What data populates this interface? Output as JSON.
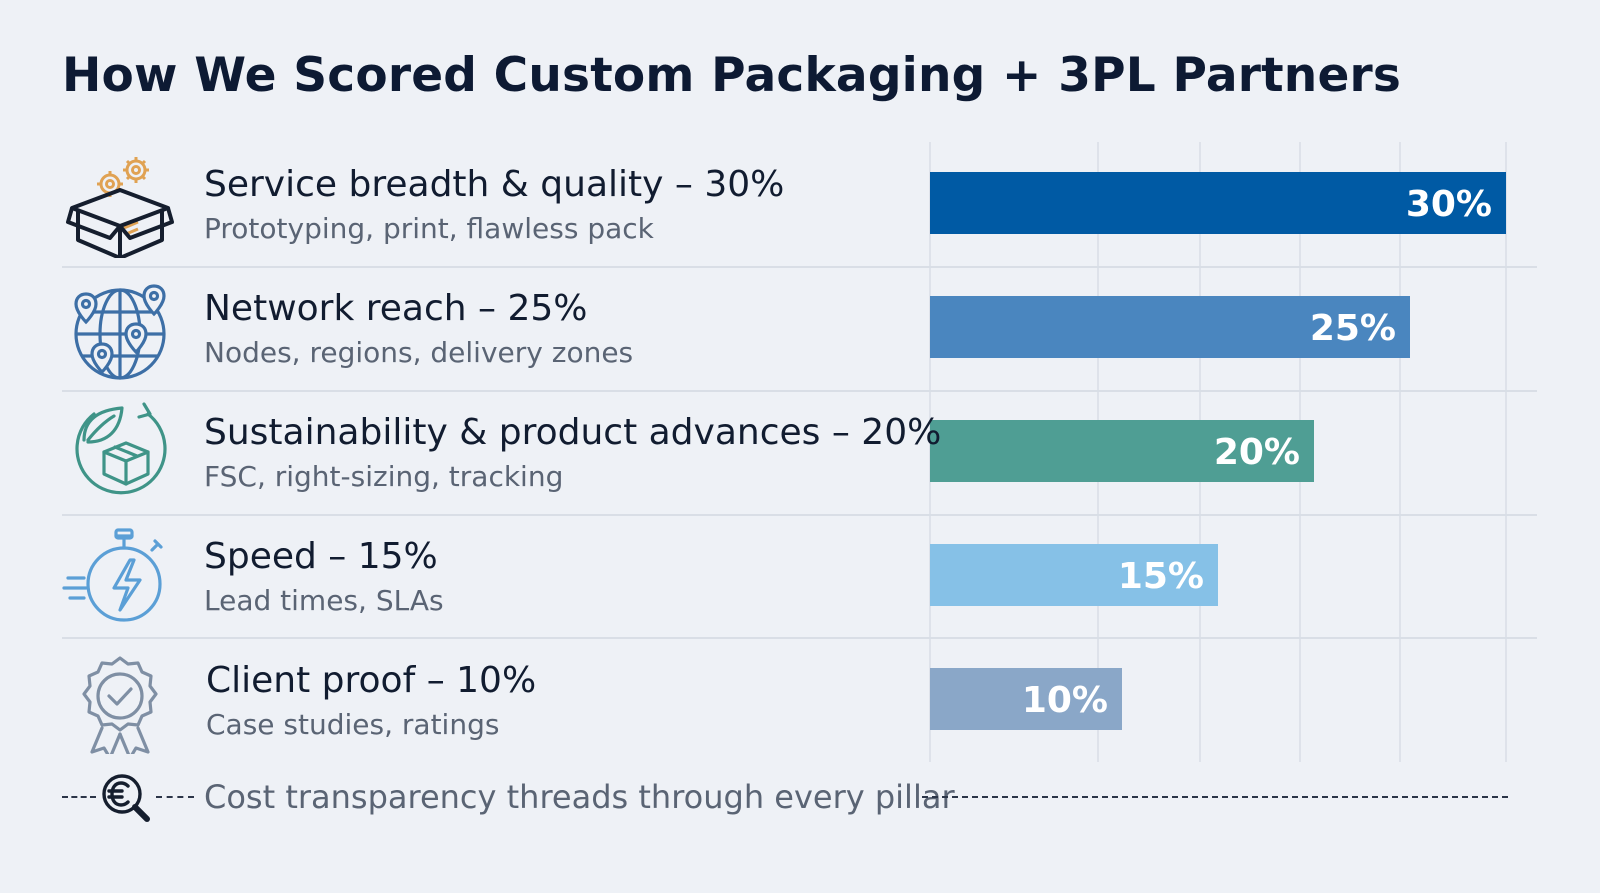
{
  "title": "How We Scored Custom Packaging + 3PL Partners",
  "rows": [
    {
      "label": "Service breadth & quality – 30%",
      "sub": "Prototyping, print, flawless pack",
      "icon": "open-box-gears-icon"
    },
    {
      "label": "Network reach – 25%",
      "sub": "Nodes, regions, delivery zones",
      "icon": "globe-pins-icon"
    },
    {
      "label": "Sustainability & product advances – 20%",
      "sub": "FSC, right-sizing, tracking",
      "icon": "leaf-recycle-box-icon"
    },
    {
      "label": "Speed – 15%",
      "sub": "Lead times, SLAs",
      "icon": "stopwatch-bolt-icon"
    },
    {
      "label": "Client proof – 10%",
      "sub": "Case studies, ratings",
      "icon": "award-badge-icon"
    }
  ],
  "footer": {
    "note": "Cost transparency threads through every pillar",
    "icon": "euro-magnifier-icon"
  },
  "chart_data": {
    "type": "bar",
    "orientation": "horizontal",
    "categories": [
      "Service breadth & quality",
      "Network reach",
      "Sustainability & product advances",
      "Speed",
      "Client proof"
    ],
    "values": [
      30,
      25,
      20,
      15,
      10
    ],
    "data_labels": [
      "30%",
      "25%",
      "20%",
      "15%",
      "10%"
    ],
    "colors": [
      "#005aa4",
      "#4a86bf",
      "#4f9e94",
      "#86c1e7",
      "#8aa7c8"
    ],
    "xlim": [
      0,
      30
    ],
    "grid": true,
    "title": "How We Scored Custom Packaging + 3PL Partners"
  }
}
